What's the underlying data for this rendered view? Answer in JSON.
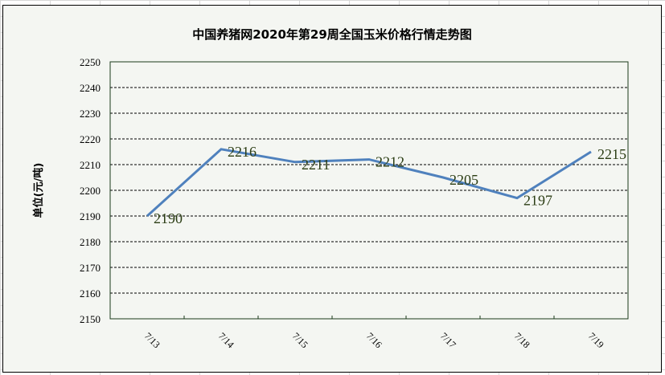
{
  "chart_data": {
    "type": "line",
    "title": "中国养猪网2020年第29周全国玉米价格行情走势图",
    "ylabel": "单位(元/吨)",
    "xlabel": "",
    "categories": [
      "7/13",
      "7/14",
      "7/15",
      "7/16",
      "7/17",
      "7/18",
      "7/19"
    ],
    "values": [
      2190,
      2216,
      2211,
      2212,
      2205,
      2197,
      2215
    ],
    "ylim": [
      2150,
      2250
    ],
    "yticks": [
      2150,
      2160,
      2170,
      2180,
      2190,
      2200,
      2210,
      2220,
      2230,
      2240,
      2250
    ],
    "grid": "horizontal dashed",
    "line_color": "#4f81bd",
    "label_color": "#2b3d14"
  }
}
